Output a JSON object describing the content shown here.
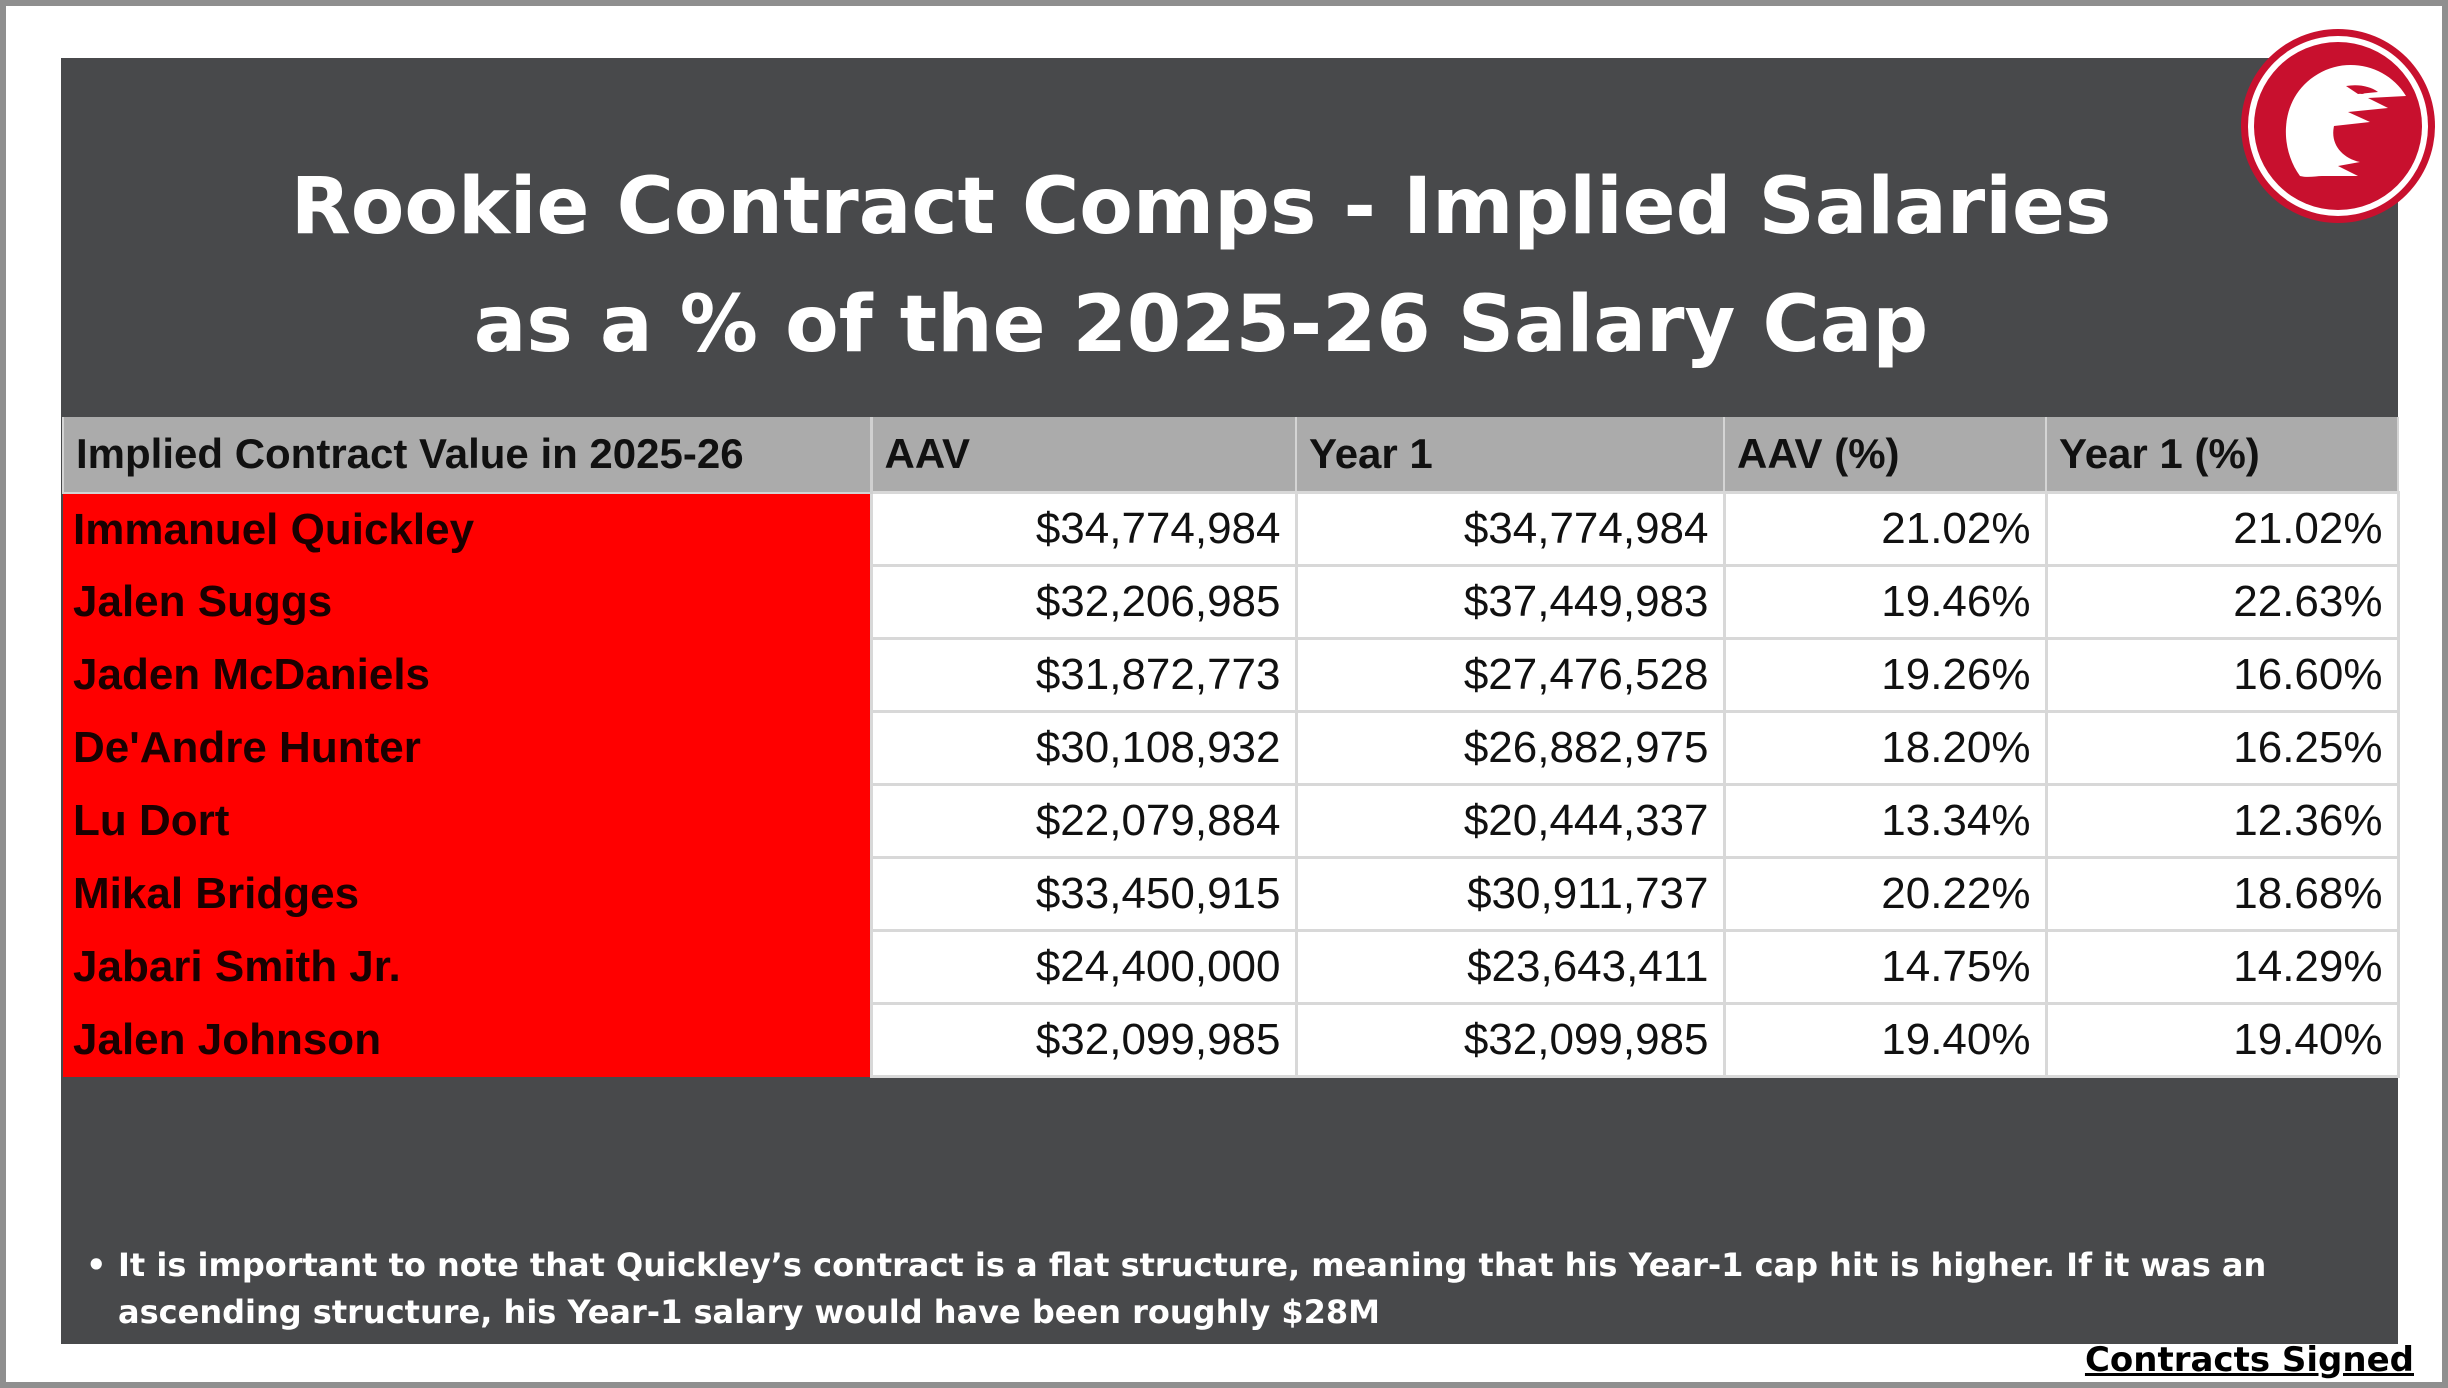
{
  "title": {
    "line1": "Rookie Contract Comps - Implied Salaries",
    "line2": "as a % of the 2025-26 Salary Cap"
  },
  "logo": {
    "icon": "atlanta-hawks-logo-icon",
    "color": "#c8102e"
  },
  "table": {
    "headers": [
      "Implied Contract Value in 2025-26",
      "AAV",
      "Year 1",
      "AAV (%)",
      "Year 1 (%)"
    ],
    "rows": [
      {
        "name": "Immanuel Quickley",
        "aav": "$34,774,984",
        "year1": "$34,774,984",
        "aav_pct": "21.02%",
        "year1_pct": "21.02%"
      },
      {
        "name": "Jalen Suggs",
        "aav": "$32,206,985",
        "year1": "$37,449,983",
        "aav_pct": "19.46%",
        "year1_pct": "22.63%"
      },
      {
        "name": "Jaden McDaniels",
        "aav": "$31,872,773",
        "year1": "$27,476,528",
        "aav_pct": "19.26%",
        "year1_pct": "16.60%"
      },
      {
        "name": "De'Andre Hunter",
        "aav": "$30,108,932",
        "year1": "$26,882,975",
        "aav_pct": "18.20%",
        "year1_pct": "16.25%"
      },
      {
        "name": "Lu Dort",
        "aav": "$22,079,884",
        "year1": "$20,444,337",
        "aav_pct": "13.34%",
        "year1_pct": "12.36%"
      },
      {
        "name": "Mikal Bridges",
        "aav": "$33,450,915",
        "year1": "$30,911,737",
        "aav_pct": "20.22%",
        "year1_pct": "18.68%"
      },
      {
        "name": "Jabari Smith Jr.",
        "aav": "$24,400,000",
        "year1": "$23,643,411",
        "aav_pct": "14.75%",
        "year1_pct": "14.29%"
      },
      {
        "name": "Jalen Johnson",
        "aav": "$32,099,985",
        "year1": "$32,099,985",
        "aav_pct": "19.40%",
        "year1_pct": "19.40%"
      }
    ]
  },
  "note": {
    "bullet": "•",
    "text": "It is important to note that Quickley’s contract is a flat structure, meaning that his Year-1 cap hit is higher. If it was an ascending structure, his Year-1 salary would have been roughly $28M"
  },
  "footer": {
    "label": "Contracts Signed"
  },
  "colors": {
    "panel": "#48494b",
    "name_cell": "#ff0000",
    "header": "#ababab"
  }
}
